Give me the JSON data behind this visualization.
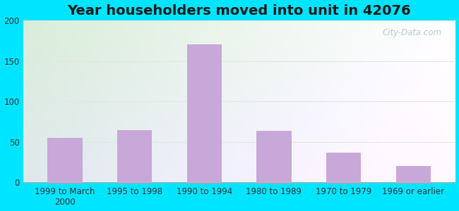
{
  "title": "Year householders moved into unit in 42076",
  "categories": [
    "1999 to March\n2000",
    "1995 to 1998",
    "1990 to 1994",
    "1980 to 1989",
    "1970 to 1979",
    "1969 or earlier"
  ],
  "values": [
    55,
    65,
    170,
    64,
    37,
    20
  ],
  "bar_color": "#c8a8d8",
  "ylim": [
    0,
    200
  ],
  "yticks": [
    0,
    50,
    100,
    150,
    200
  ],
  "background_outer": "#00e5ff",
  "background_top_left": "#d8ecd0",
  "background_top_right": "#e8f4f0",
  "background_bottom": "#f0fafa",
  "grid_color": "#e0e8e0",
  "title_fontsize": 14,
  "tick_fontsize": 8.5,
  "watermark": "City-Data.com"
}
